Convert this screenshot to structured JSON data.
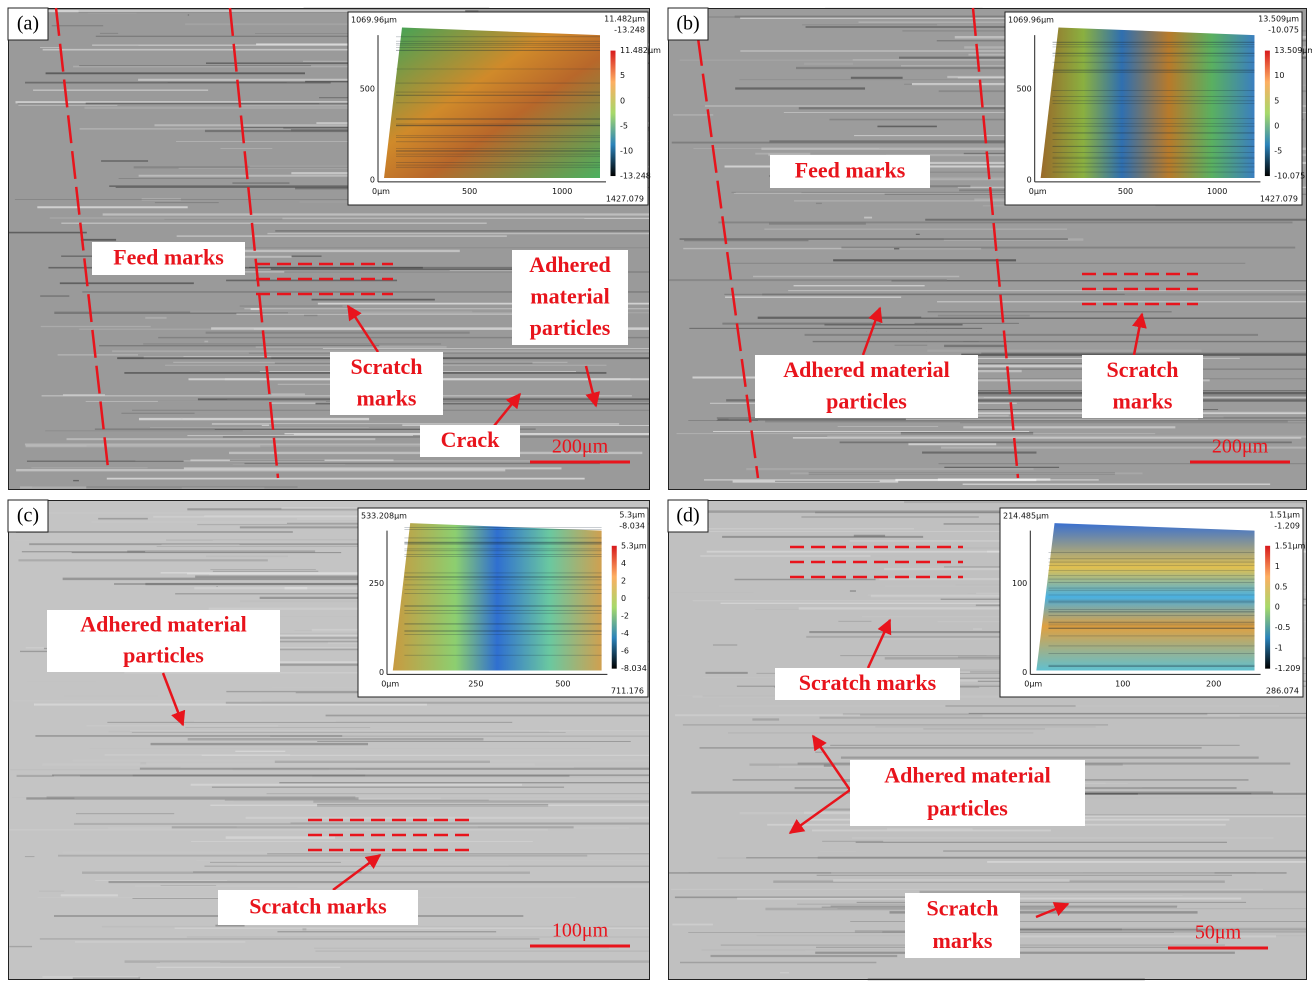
{
  "panels": [
    {
      "label": "(a)",
      "annotations": [
        {
          "lines": [
            "Feed marks"
          ]
        },
        {
          "lines": [
            "Scratch",
            "marks"
          ]
        },
        {
          "lines": [
            "Adhered",
            "material",
            "particles"
          ]
        },
        {
          "lines": [
            "Crack"
          ]
        }
      ],
      "scale_bar": "200μm",
      "inset": {
        "top_left": "1069.96μm",
        "top_right": [
          "11.482μm",
          "-13.248"
        ],
        "y_ticks": [
          "500",
          "0"
        ],
        "x_ticks": [
          "0μm",
          "500",
          "1000"
        ],
        "x_end": "1427.079",
        "colorbar": [
          "11.482μm",
          "5",
          "0",
          "-5",
          "-10",
          "-13.248"
        ]
      }
    },
    {
      "label": "(b)",
      "annotations": [
        {
          "lines": [
            "Feed marks"
          ]
        },
        {
          "lines": [
            "Adhered material",
            "particles"
          ]
        },
        {
          "lines": [
            "Scratch",
            "marks"
          ]
        }
      ],
      "scale_bar": "200μm",
      "inset": {
        "top_left": "1069.96μm",
        "top_right": [
          "13.509μm",
          "-10.075"
        ],
        "y_ticks": [
          "500",
          "0"
        ],
        "x_ticks": [
          "0μm",
          "500",
          "1000"
        ],
        "x_end": "1427.079",
        "colorbar": [
          "13.509μm",
          "10",
          "5",
          "0",
          "-5",
          "-10.075"
        ]
      }
    },
    {
      "label": "(c)",
      "annotations": [
        {
          "lines": [
            "Adhered material",
            "particles"
          ]
        },
        {
          "lines": [
            "Scratch marks"
          ]
        }
      ],
      "scale_bar": "100μm",
      "inset": {
        "top_left": "533.208μm",
        "top_right": [
          "5.3μm",
          "-8.034"
        ],
        "y_ticks": [
          "250",
          "0"
        ],
        "x_ticks": [
          "0μm",
          "250",
          "500"
        ],
        "x_end": "711.176",
        "colorbar": [
          "5.3μm",
          "4",
          "2",
          "0",
          "-2",
          "-4",
          "-6",
          "-8.034"
        ]
      }
    },
    {
      "label": "(d)",
      "annotations": [
        {
          "lines": [
            "Scratch marks"
          ]
        },
        {
          "lines": [
            "Adhered material",
            "particles"
          ]
        },
        {
          "lines": [
            "Scratch",
            "marks"
          ]
        }
      ],
      "scale_bar": "50μm",
      "inset": {
        "top_left": "214.485μm",
        "top_right": [
          "1.51μm",
          "-1.209"
        ],
        "y_ticks": [
          "100",
          "0"
        ],
        "x_ticks": [
          "0μm",
          "100",
          "200"
        ],
        "x_end": "286.074",
        "colorbar": [
          "1.51μm",
          "1",
          "0.5",
          "0",
          "-0.5",
          "-1",
          "-1.209"
        ]
      }
    }
  ]
}
